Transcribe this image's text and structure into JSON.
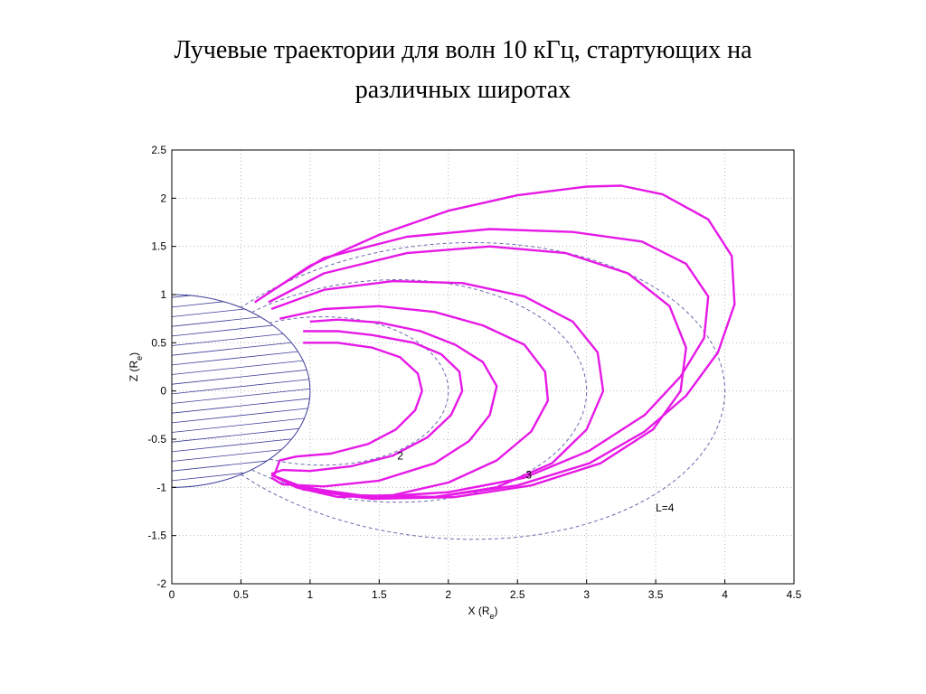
{
  "slide": {
    "title_line1": "Лучевые траектории для волн 10 кГц, стартующих на",
    "title_line2": "различных широтах"
  },
  "chart_data": {
    "type": "line",
    "title": "",
    "xlabel": "X (R",
    "xlabel_sub": "e",
    "xlabel_close": ")",
    "ylabel": "Z (R",
    "ylabel_sub": "e",
    "ylabel_close": ")",
    "xlim": [
      0,
      4.5
    ],
    "ylim": [
      -2,
      2.5
    ],
    "xticks": [
      0,
      0.5,
      1,
      1.5,
      2,
      2.5,
      3,
      3.5,
      4,
      4.5
    ],
    "xtick_labels": [
      "0",
      "0.5",
      "1",
      "1.5",
      "2",
      "2.5",
      "3",
      "3.5",
      "4",
      "4.5"
    ],
    "yticks": [
      -2,
      -1.5,
      -1,
      -0.5,
      0,
      0.5,
      1,
      1.5,
      2,
      2.5
    ],
    "ytick_labels": [
      "-2",
      "-1.5",
      "-1",
      "-0.5",
      "0",
      "0.5",
      "1",
      "1.5",
      "2",
      "2.5"
    ],
    "grid": true,
    "colors": {
      "rays": "#e619e6",
      "field_lines": "#6a6aae",
      "earth": "#3d3d9a",
      "grid": "#b8b8b8"
    },
    "field_lines": [
      {
        "L": 2,
        "label": "2",
        "label_at": [
          1.63,
          -0.71
        ]
      },
      {
        "L": 3,
        "label": "3",
        "label_at": [
          2.56,
          -0.91
        ]
      },
      {
        "L": 4,
        "label": "L=4",
        "label_at": [
          3.5,
          -1.25
        ]
      }
    ],
    "rays": [
      {
        "points": [
          [
            1.0,
            0.72
          ],
          [
            1.2,
            0.74
          ],
          [
            1.5,
            0.71
          ],
          [
            1.8,
            0.62
          ],
          [
            2.05,
            0.48
          ],
          [
            2.25,
            0.3
          ],
          [
            2.35,
            0.05
          ],
          [
            2.3,
            -0.25
          ],
          [
            2.15,
            -0.52
          ],
          [
            1.9,
            -0.75
          ],
          [
            1.5,
            -0.93
          ],
          [
            1.1,
            -0.99
          ],
          [
            0.8,
            -0.97
          ],
          [
            0.72,
            -0.9
          ]
        ]
      },
      {
        "points": [
          [
            0.95,
            0.62
          ],
          [
            1.2,
            0.62
          ],
          [
            1.45,
            0.58
          ],
          [
            1.75,
            0.5
          ],
          [
            1.95,
            0.38
          ],
          [
            2.08,
            0.2
          ],
          [
            2.1,
            0.0
          ],
          [
            2.02,
            -0.25
          ],
          [
            1.85,
            -0.48
          ],
          [
            1.6,
            -0.67
          ],
          [
            1.3,
            -0.78
          ],
          [
            1.0,
            -0.83
          ],
          [
            0.8,
            -0.82
          ],
          [
            0.72,
            -0.86
          ]
        ]
      },
      {
        "points": [
          [
            0.95,
            0.5
          ],
          [
            1.2,
            0.5
          ],
          [
            1.45,
            0.45
          ],
          [
            1.65,
            0.35
          ],
          [
            1.78,
            0.18
          ],
          [
            1.81,
            0.0
          ],
          [
            1.76,
            -0.2
          ],
          [
            1.62,
            -0.4
          ],
          [
            1.42,
            -0.55
          ],
          [
            1.15,
            -0.65
          ],
          [
            0.9,
            -0.68
          ],
          [
            0.78,
            -0.72
          ],
          [
            0.74,
            -0.88
          ]
        ]
      },
      {
        "points": [
          [
            0.78,
            0.75
          ],
          [
            1.1,
            0.85
          ],
          [
            1.5,
            0.88
          ],
          [
            1.9,
            0.82
          ],
          [
            2.25,
            0.68
          ],
          [
            2.55,
            0.48
          ],
          [
            2.7,
            0.2
          ],
          [
            2.72,
            -0.1
          ],
          [
            2.6,
            -0.42
          ],
          [
            2.35,
            -0.72
          ],
          [
            2.0,
            -0.95
          ],
          [
            1.6,
            -1.08
          ],
          [
            1.2,
            -1.1
          ],
          [
            0.9,
            -1.0
          ],
          [
            0.72,
            -0.87
          ]
        ]
      },
      {
        "points": [
          [
            0.72,
            0.85
          ],
          [
            1.1,
            1.05
          ],
          [
            1.6,
            1.14
          ],
          [
            2.1,
            1.12
          ],
          [
            2.55,
            0.98
          ],
          [
            2.9,
            0.72
          ],
          [
            3.08,
            0.4
          ],
          [
            3.12,
            0.0
          ],
          [
            3.0,
            -0.4
          ],
          [
            2.75,
            -0.75
          ],
          [
            2.35,
            -1.0
          ],
          [
            1.9,
            -1.1
          ],
          [
            1.4,
            -1.11
          ],
          [
            0.95,
            -1.02
          ],
          [
            0.72,
            -0.87
          ]
        ]
      },
      {
        "points": [
          [
            0.7,
            0.92
          ],
          [
            1.1,
            1.22
          ],
          [
            1.7,
            1.43
          ],
          [
            2.3,
            1.5
          ],
          [
            2.85,
            1.43
          ],
          [
            3.3,
            1.22
          ],
          [
            3.6,
            0.88
          ],
          [
            3.72,
            0.45
          ],
          [
            3.68,
            0.0
          ],
          [
            3.48,
            -0.4
          ],
          [
            3.1,
            -0.75
          ],
          [
            2.6,
            -0.98
          ],
          [
            2.05,
            -1.1
          ],
          [
            1.45,
            -1.12
          ],
          [
            0.95,
            -1.02
          ],
          [
            0.72,
            -0.87
          ]
        ]
      },
      {
        "points": [
          [
            0.68,
            1.0
          ],
          [
            1.1,
            1.38
          ],
          [
            1.7,
            1.6
          ],
          [
            2.3,
            1.68
          ],
          [
            2.9,
            1.65
          ],
          [
            3.4,
            1.55
          ],
          [
            3.72,
            1.32
          ],
          [
            3.88,
            0.98
          ],
          [
            3.85,
            0.55
          ],
          [
            3.68,
            0.15
          ],
          [
            3.42,
            -0.25
          ],
          [
            3.02,
            -0.62
          ],
          [
            2.55,
            -0.9
          ],
          [
            2.0,
            -1.05
          ],
          [
            1.45,
            -1.1
          ],
          [
            0.95,
            -1.0
          ],
          [
            0.72,
            -0.87
          ]
        ]
      },
      {
        "points": [
          [
            0.6,
            0.92
          ],
          [
            1.0,
            1.3
          ],
          [
            1.5,
            1.62
          ],
          [
            2.0,
            1.87
          ],
          [
            2.5,
            2.03
          ],
          [
            3.0,
            2.12
          ],
          [
            3.25,
            2.13
          ],
          [
            3.55,
            2.04
          ],
          [
            3.88,
            1.78
          ],
          [
            4.05,
            1.4
          ],
          [
            4.07,
            0.9
          ],
          [
            3.95,
            0.4
          ],
          [
            3.72,
            -0.05
          ],
          [
            3.42,
            -0.42
          ],
          [
            3.02,
            -0.75
          ],
          [
            2.5,
            -0.98
          ],
          [
            1.9,
            -1.1
          ],
          [
            1.3,
            -1.08
          ],
          [
            0.9,
            -0.98
          ],
          [
            0.72,
            -0.87
          ]
        ]
      }
    ]
  }
}
